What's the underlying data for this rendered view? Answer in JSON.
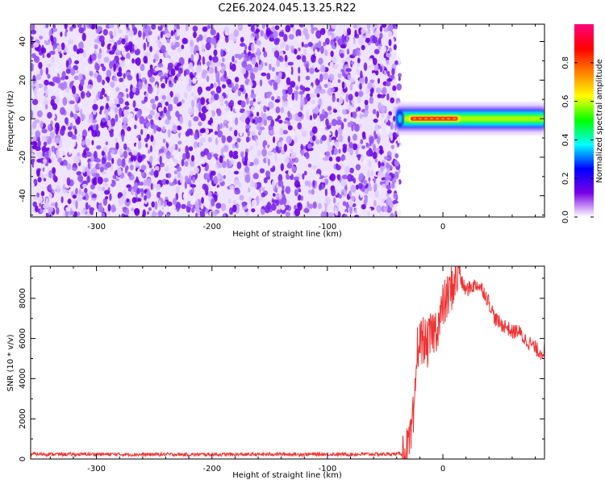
{
  "figure_title": "C2E6.2024.045.13.25.R22",
  "chart_data": [
    {
      "type": "heatmap",
      "xlabel": "Height of straight line (km)",
      "ylabel": "Frequency (Hz)",
      "xlim": [
        -357,
        88
      ],
      "ylim": [
        -51,
        49
      ],
      "x_ticks": [
        -300,
        -200,
        -100,
        0
      ],
      "y_ticks": [
        -40,
        -20,
        0,
        20,
        40
      ],
      "colorbar": {
        "label": "Normalized spectral amplitude",
        "range": [
          0,
          1
        ],
        "ticks": [
          0.0,
          0.2,
          0.4,
          0.6,
          0.8
        ],
        "tick_labels": [
          "0.0",
          "0.2",
          "0.4",
          "0.6",
          "0.8"
        ],
        "colormap": [
          "#ffffff",
          "#7a00e6",
          "#0000ff",
          "#00ffff",
          "#00ff00",
          "#ffff00",
          "#ff8000",
          "#ff0000",
          "#ff0080"
        ]
      },
      "regions": [
        {
          "description": "noise",
          "x_range": [
            -357,
            -40
          ],
          "freq_range": [
            -51,
            49
          ],
          "amplitude_range": [
            0.0,
            0.25
          ]
        },
        {
          "description": "signal band",
          "x_range": [
            -40,
            88
          ],
          "center_freq_hz": 0,
          "half_width_hz": [
            2,
            5
          ],
          "peak_amplitude": 1.0,
          "peak_x_range": [
            -30,
            15
          ]
        }
      ]
    },
    {
      "type": "line",
      "xlabel": "Height of straight line (km)",
      "ylabel": "SNR (10 * v/v)",
      "xlim": [
        -357,
        88
      ],
      "ylim": [
        0,
        9600
      ],
      "x_ticks": [
        -300,
        -200,
        -100,
        0
      ],
      "y_ticks": [
        0,
        2000,
        4000,
        6000,
        8000
      ],
      "color": "#ee3333",
      "series": [
        {
          "x": [
            -357,
            -340,
            -320,
            -300,
            -280,
            -260,
            -240,
            -220,
            -200,
            -180,
            -160,
            -140,
            -120,
            -100,
            -80,
            -60,
            -40,
            -32,
            -28,
            -26,
            -25,
            -24,
            -22,
            -20,
            -17,
            -14,
            -10,
            -6,
            -2,
            0,
            4,
            8,
            12,
            14,
            16,
            20,
            25,
            30,
            35,
            40,
            45,
            50,
            55,
            60,
            65,
            70,
            75,
            80,
            85,
            88
          ],
          "y": [
            250,
            240,
            230,
            240,
            230,
            220,
            230,
            220,
            230,
            220,
            230,
            240,
            230,
            240,
            230,
            240,
            250,
            300,
            800,
            2000,
            1400,
            3500,
            5600,
            5800,
            6000,
            5600,
            6200,
            6500,
            7000,
            7600,
            8000,
            8600,
            9000,
            9600,
            8800,
            8400,
            8600,
            8700,
            8400,
            7800,
            7000,
            6700,
            6600,
            6300,
            6400,
            6000,
            5800,
            5500,
            5300,
            5400
          ]
        }
      ]
    }
  ]
}
